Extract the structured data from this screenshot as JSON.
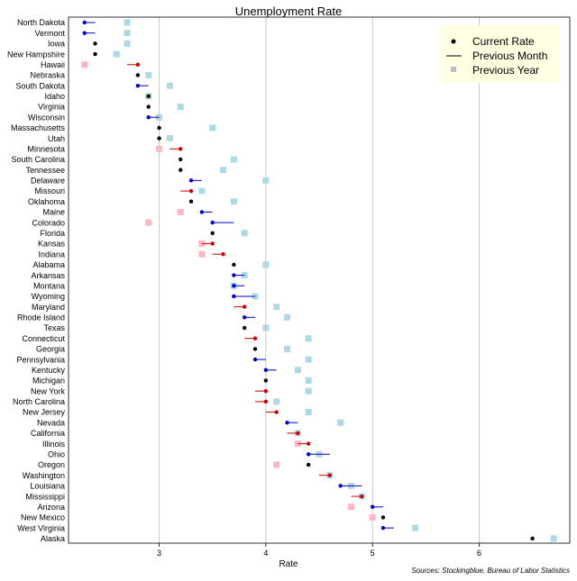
{
  "chart_data": {
    "type": "dot-range",
    "title": "Unemployment Rate",
    "xlabel": "Rate",
    "ylabel": "",
    "xlim": [
      2.15,
      6.85
    ],
    "xticks": [
      3,
      4,
      5,
      6
    ],
    "grid": "vertical",
    "legend_position": "top-right",
    "legend": {
      "current": "Current Rate",
      "previous_month": "Previous Month",
      "previous_year": "Previous Year"
    },
    "source": "Sources: Stockingblue, Bureau of Labor Statistics",
    "colors": {
      "current": "#000000",
      "improved": "#0000cc",
      "worsened": "#cc0000",
      "year_better": "#add8e6",
      "year_worse": "#ffb6c1",
      "grid": "#bebebe",
      "legend_bg": "#ffffe4"
    },
    "states": [
      {
        "name": "North Dakota",
        "current": 2.3,
        "prev_month": 2.4,
        "prev_year": 2.7
      },
      {
        "name": "Vermont",
        "current": 2.3,
        "prev_month": 2.4,
        "prev_year": 2.7
      },
      {
        "name": "Iowa",
        "current": 2.4,
        "prev_month": 2.4,
        "prev_year": 2.7
      },
      {
        "name": "New Hampshire",
        "current": 2.4,
        "prev_month": 2.4,
        "prev_year": 2.6
      },
      {
        "name": "Hawaii",
        "current": 2.8,
        "prev_month": 2.7,
        "prev_year": 2.3
      },
      {
        "name": "Nebraska",
        "current": 2.8,
        "prev_month": 2.8,
        "prev_year": 2.9
      },
      {
        "name": "South Dakota",
        "current": 2.8,
        "prev_month": 2.9,
        "prev_year": 3.1
      },
      {
        "name": "Idaho",
        "current": 2.9,
        "prev_month": 2.9,
        "prev_year": 2.9
      },
      {
        "name": "Virginia",
        "current": 2.9,
        "prev_month": 2.9,
        "prev_year": 3.2
      },
      {
        "name": "Wisconsin",
        "current": 2.9,
        "prev_month": 3.0,
        "prev_year": 3.0
      },
      {
        "name": "Massachusetts",
        "current": 3.0,
        "prev_month": 3.0,
        "prev_year": 3.5
      },
      {
        "name": "Utah",
        "current": 3.0,
        "prev_month": 3.0,
        "prev_year": 3.1
      },
      {
        "name": "Minnesota",
        "current": 3.2,
        "prev_month": 3.1,
        "prev_year": 3.0
      },
      {
        "name": "South Carolina",
        "current": 3.2,
        "prev_month": 3.2,
        "prev_year": 3.7
      },
      {
        "name": "Tennessee",
        "current": 3.2,
        "prev_month": 3.2,
        "prev_year": 3.6
      },
      {
        "name": "Delaware",
        "current": 3.3,
        "prev_month": 3.4,
        "prev_year": 4.0
      },
      {
        "name": "Missouri",
        "current": 3.3,
        "prev_month": 3.2,
        "prev_year": 3.4
      },
      {
        "name": "Oklahoma",
        "current": 3.3,
        "prev_month": 3.3,
        "prev_year": 3.7
      },
      {
        "name": "Maine",
        "current": 3.4,
        "prev_month": 3.5,
        "prev_year": 3.2
      },
      {
        "name": "Colorado",
        "current": 3.5,
        "prev_month": 3.7,
        "prev_year": 2.9
      },
      {
        "name": "Florida",
        "current": 3.5,
        "prev_month": 3.5,
        "prev_year": 3.8
      },
      {
        "name": "Kansas",
        "current": 3.5,
        "prev_month": 3.4,
        "prev_year": 3.4
      },
      {
        "name": "Indiana",
        "current": 3.6,
        "prev_month": 3.5,
        "prev_year": 3.4
      },
      {
        "name": "Alabama",
        "current": 3.7,
        "prev_month": 3.7,
        "prev_year": 4.0
      },
      {
        "name": "Arkansas",
        "current": 3.7,
        "prev_month": 3.8,
        "prev_year": 3.8
      },
      {
        "name": "Montana",
        "current": 3.7,
        "prev_month": 3.8,
        "prev_year": 3.7
      },
      {
        "name": "Wyoming",
        "current": 3.7,
        "prev_month": 3.9,
        "prev_year": 3.9
      },
      {
        "name": "Maryland",
        "current": 3.8,
        "prev_month": 3.7,
        "prev_year": 4.1
      },
      {
        "name": "Rhode Island",
        "current": 3.8,
        "prev_month": 3.9,
        "prev_year": 4.2
      },
      {
        "name": "Texas",
        "current": 3.8,
        "prev_month": 3.8,
        "prev_year": 4.0
      },
      {
        "name": "Connecticut",
        "current": 3.9,
        "prev_month": 3.8,
        "prev_year": 4.4
      },
      {
        "name": "Georgia",
        "current": 3.9,
        "prev_month": 3.9,
        "prev_year": 4.2
      },
      {
        "name": "Pennsylvania",
        "current": 3.9,
        "prev_month": 4.0,
        "prev_year": 4.4
      },
      {
        "name": "Kentucky",
        "current": 4.0,
        "prev_month": 4.1,
        "prev_year": 4.3
      },
      {
        "name": "Michigan",
        "current": 4.0,
        "prev_month": 4.0,
        "prev_year": 4.4
      },
      {
        "name": "New York",
        "current": 4.0,
        "prev_month": 3.9,
        "prev_year": 4.4
      },
      {
        "name": "North Carolina",
        "current": 4.0,
        "prev_month": 3.9,
        "prev_year": 4.1
      },
      {
        "name": "New Jersey",
        "current": 4.1,
        "prev_month": 4.0,
        "prev_year": 4.4
      },
      {
        "name": "Nevada",
        "current": 4.2,
        "prev_month": 4.3,
        "prev_year": 4.7
      },
      {
        "name": "California",
        "current": 4.3,
        "prev_month": 4.2,
        "prev_year": 4.3
      },
      {
        "name": "Illinois",
        "current": 4.4,
        "prev_month": 4.3,
        "prev_year": 4.3
      },
      {
        "name": "Ohio",
        "current": 4.4,
        "prev_month": 4.6,
        "prev_year": 4.5
      },
      {
        "name": "Oregon",
        "current": 4.4,
        "prev_month": 4.4,
        "prev_year": 4.1
      },
      {
        "name": "Washington",
        "current": 4.6,
        "prev_month": 4.5,
        "prev_year": 4.6
      },
      {
        "name": "Louisiana",
        "current": 4.7,
        "prev_month": 4.9,
        "prev_year": 4.8
      },
      {
        "name": "Mississippi",
        "current": 4.9,
        "prev_month": 4.8,
        "prev_year": 4.9
      },
      {
        "name": "Arizona",
        "current": 5.0,
        "prev_month": 5.1,
        "prev_year": 4.8
      },
      {
        "name": "New Mexico",
        "current": 5.1,
        "prev_month": 5.1,
        "prev_year": 5.0
      },
      {
        "name": "West Virginia",
        "current": 5.1,
        "prev_month": 5.2,
        "prev_year": 5.4
      },
      {
        "name": "Alaska",
        "current": 6.5,
        "prev_month": 6.5,
        "prev_year": 6.7
      }
    ]
  }
}
